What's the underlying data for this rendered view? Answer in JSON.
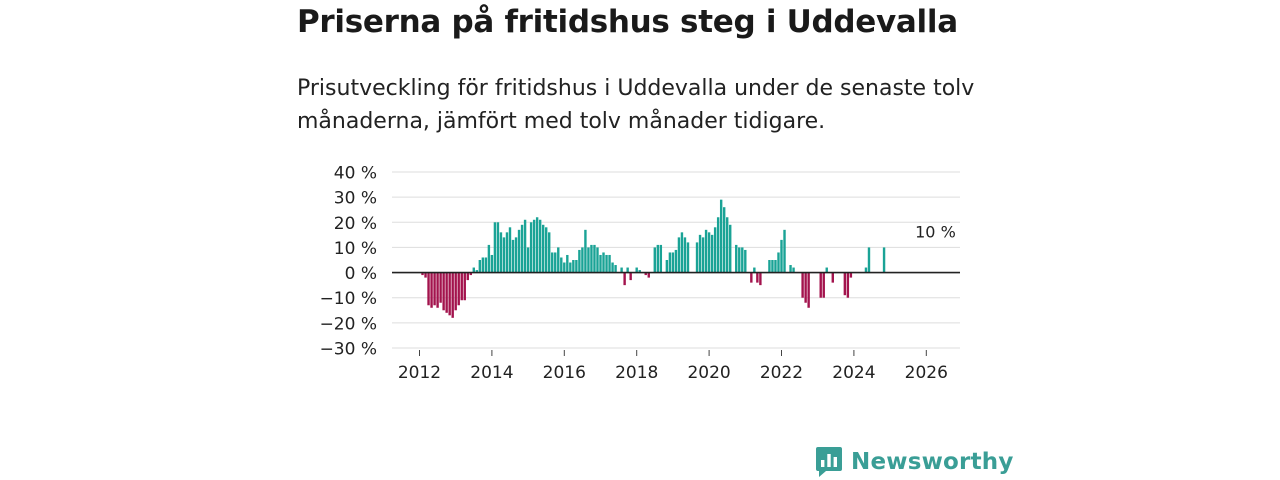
{
  "title": "Priserna på fritidshus steg i Uddevalla",
  "subtitle": "Prisutveckling för fritidshus i Uddevalla under de senaste tolv månaderna, jämfört med tolv månader tidigare.",
  "brand": {
    "name": "Newsworthy"
  },
  "colors": {
    "positive": "#1aa396",
    "negative": "#a3134d",
    "grid": "#dddddd",
    "zero": "#222222",
    "brand": "#3a9e96"
  },
  "chart_data": {
    "type": "bar",
    "title": "Priserna på fritidshus steg i Uddevalla",
    "ylabel": "",
    "xlabel": "",
    "ylim": [
      -30,
      40
    ],
    "yticks": [
      40,
      30,
      20,
      10,
      0,
      -10,
      -20,
      -30
    ],
    "ytick_labels": [
      "40 %",
      "30 %",
      "20 %",
      "10 %",
      "0 %",
      "−10 %",
      "−20 %",
      "−30 %"
    ],
    "xticks": [
      2012,
      2014,
      2016,
      2018,
      2020,
      2022,
      2024,
      2026
    ],
    "xtick_labels": [
      "2012",
      "2014",
      "2016",
      "2018",
      "2020",
      "2022",
      "2024",
      "2026"
    ],
    "annotation": {
      "text": "10 %",
      "x": 2026.17,
      "value": 10
    },
    "start_year": 2012,
    "start_month": 1,
    "values": [
      0,
      -1,
      -2,
      -13,
      -14,
      -13,
      -14,
      -12,
      -15,
      -16,
      -17,
      -18,
      -15,
      -13,
      -11,
      -11,
      -3,
      -1,
      2,
      1,
      5,
      6,
      6,
      11,
      7,
      20,
      20,
      16,
      14,
      16,
      18,
      13,
      14,
      17,
      19,
      21,
      10,
      20,
      21,
      22,
      21,
      19,
      18,
      16,
      8,
      8,
      10,
      6,
      4,
      7,
      4,
      5,
      5,
      9,
      10,
      17,
      10,
      11,
      11,
      10,
      7,
      8,
      7,
      7,
      4,
      3,
      0,
      2,
      -5,
      2,
      -3,
      0,
      2,
      1,
      0,
      -1,
      -2,
      0,
      10,
      11,
      11,
      0,
      5,
      8,
      8,
      9,
      14,
      16,
      14,
      12,
      0,
      0,
      12,
      15,
      14,
      17,
      16,
      15,
      18,
      22,
      29,
      26,
      22,
      19,
      0,
      11,
      10,
      10,
      9,
      0,
      -4,
      2,
      -4,
      -5,
      0,
      0,
      5,
      5,
      5,
      8,
      13,
      17,
      0,
      3,
      2,
      0,
      0,
      -10,
      -12,
      -14,
      0,
      0,
      0,
      -10,
      -10,
      2,
      0,
      -4,
      0,
      0,
      0,
      -9,
      -10,
      -2,
      0,
      0,
      0,
      0,
      2,
      10,
      0,
      0,
      0,
      0,
      10
    ]
  }
}
